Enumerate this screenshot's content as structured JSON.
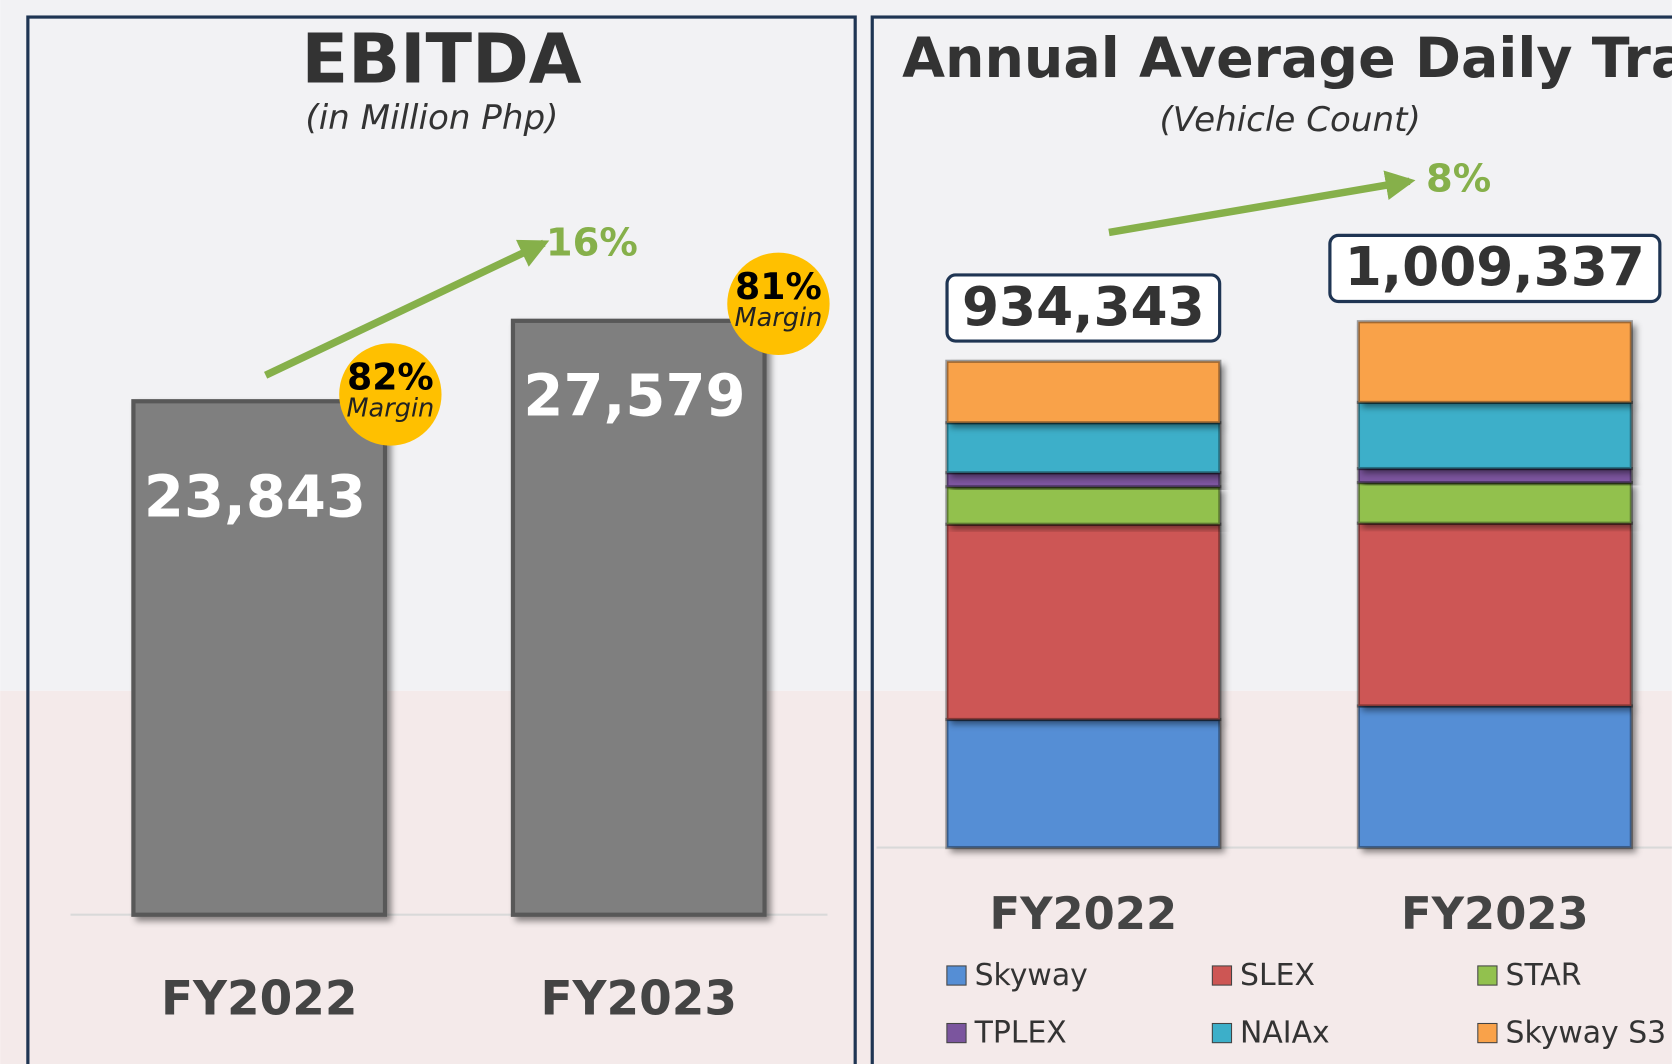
{
  "chart_data": [
    {
      "type": "bar",
      "title": "EBITDA",
      "subtitle": "(in Million Php)",
      "categories": [
        "FY2022",
        "FY2023"
      ],
      "values": [
        23843,
        27579
      ],
      "value_labels": [
        "23,843",
        "27,579"
      ],
      "color": "#7f7f7f",
      "ylim": [
        0,
        30000
      ],
      "margins": {
        "values": [
          82,
          81
        ],
        "value_labels": [
          "82%",
          "81%"
        ],
        "label": "Margin",
        "color": "#ffc000"
      },
      "growth": {
        "value": 16,
        "label": "16%",
        "color": "#86b04a"
      }
    },
    {
      "type": "stacked_bar",
      "title": "Annual Average Daily Traffic",
      "subtitle": "(Vehicle Count)",
      "categories": [
        "FY2022",
        "FY2023"
      ],
      "totals": [
        934343,
        1009337
      ],
      "total_labels": [
        "934,343",
        "1,009,337"
      ],
      "ylim": [
        0,
        1200000
      ],
      "series": [
        {
          "name": "Skyway",
          "color": "#558ed5",
          "values": [
            246000,
            272000
          ]
        },
        {
          "name": "SLEX",
          "color": "#cd5654",
          "values": [
            375000,
            351000
          ]
        },
        {
          "name": "STAR",
          "color": "#92c14e",
          "values": [
            72000,
            78000
          ]
        },
        {
          "name": "TPLEX",
          "color": "#7b559e",
          "values": [
            27000,
            27000
          ]
        },
        {
          "name": "NAIAx",
          "color": "#3cafc9",
          "values": [
            96000,
            127000
          ]
        },
        {
          "name": "Skyway S3",
          "color": "#f9a24a",
          "values": [
            118000,
            155000
          ]
        }
      ],
      "growth": {
        "value": 8,
        "label": "8%",
        "color": "#86b04a"
      }
    }
  ]
}
